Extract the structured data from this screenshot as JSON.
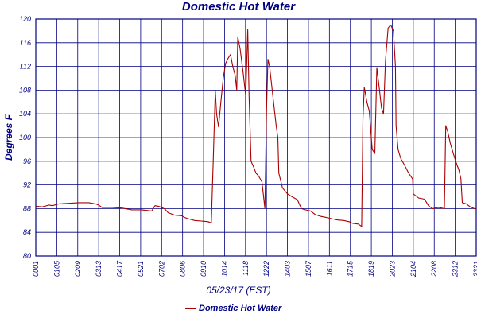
{
  "chart_data": {
    "type": "line",
    "title": "Domestic Hot Water",
    "xlabel": "05/23/17 (EST)",
    "ylabel": "Degrees F",
    "ylim": [
      80,
      120
    ],
    "yticks": [
      "80",
      "84",
      "88",
      "92",
      "96",
      "100",
      "104",
      "108",
      "112",
      "116",
      "120"
    ],
    "xticks": [
      "0001",
      "0105",
      "0209",
      "0313",
      "0417",
      "0521",
      "0702",
      "0806",
      "0910",
      "1014",
      "1118",
      "1222",
      "1403",
      "1507",
      "1611",
      "1715",
      "1819",
      "2023",
      "2104",
      "2208",
      "2312",
      "2321"
    ],
    "grid": true,
    "legend": {
      "position": "bottom",
      "entries": [
        "Domestic Hot Water"
      ]
    },
    "series": [
      {
        "name": "Domestic Hot Water",
        "color": "#aa0000",
        "points": [
          [
            0,
            88.4
          ],
          [
            2,
            88.3
          ],
          [
            4,
            88.6
          ],
          [
            5,
            88.5
          ],
          [
            7,
            88.8
          ],
          [
            10,
            88.9
          ],
          [
            13,
            89.0
          ],
          [
            16,
            89.0
          ],
          [
            18,
            88.8
          ],
          [
            19,
            88.6
          ],
          [
            20,
            88.2
          ],
          [
            23,
            88.2
          ],
          [
            26,
            88.1
          ],
          [
            29,
            87.8
          ],
          [
            32,
            87.8
          ],
          [
            35,
            87.6
          ],
          [
            36,
            88.5
          ],
          [
            37,
            88.4
          ],
          [
            38,
            88.2
          ],
          [
            39,
            87.9
          ],
          [
            40,
            87.3
          ],
          [
            42,
            86.9
          ],
          [
            44,
            86.8
          ],
          [
            45,
            86.5
          ],
          [
            46,
            86.3
          ],
          [
            48,
            86.0
          ],
          [
            50,
            85.9
          ],
          [
            52,
            85.8
          ],
          [
            53,
            85.6
          ],
          [
            53.6,
            96.5
          ],
          [
            54.2,
            108.0
          ],
          [
            54.6,
            104.0
          ],
          [
            55.2,
            101.8
          ],
          [
            55.9,
            106.0
          ],
          [
            56.6,
            110.0
          ],
          [
            57.3,
            112.5
          ],
          [
            58.1,
            113.4
          ],
          [
            58.8,
            114.0
          ],
          [
            59.5,
            112.0
          ],
          [
            60.2,
            110.5
          ],
          [
            60.7,
            108.0
          ],
          [
            61.0,
            117.0
          ],
          [
            61.7,
            115.0
          ],
          [
            62.6,
            111.0
          ],
          [
            63.4,
            107.0
          ],
          [
            64.0,
            118.2
          ],
          [
            64.4,
            107.0
          ],
          [
            65.0,
            96.0
          ],
          [
            65.8,
            95.0
          ],
          [
            66.5,
            94.0
          ],
          [
            67.3,
            93.5
          ],
          [
            68.3,
            92.5
          ],
          [
            69.2,
            88.0
          ],
          [
            69.7,
            105.0
          ],
          [
            70.1,
            113.2
          ],
          [
            70.6,
            112.0
          ],
          [
            71.4,
            108.0
          ],
          [
            72.0,
            105.0
          ],
          [
            72.6,
            102.0
          ],
          [
            73.1,
            100.0
          ],
          [
            73.4,
            94.0
          ],
          [
            74.5,
            91.5
          ],
          [
            76.0,
            90.5
          ],
          [
            77.4,
            90.0
          ],
          [
            79.0,
            89.5
          ],
          [
            80.2,
            88.0
          ],
          [
            81.4,
            87.8
          ],
          [
            83.0,
            87.6
          ],
          [
            84.4,
            87.0
          ],
          [
            86.0,
            86.7
          ],
          [
            87.8,
            86.5
          ],
          [
            89.4,
            86.3
          ],
          [
            91.0,
            86.1
          ],
          [
            93.0,
            86.0
          ],
          [
            94.6,
            85.8
          ],
          [
            95.8,
            85.5
          ],
          [
            97.4,
            85.4
          ],
          [
            98.4,
            85.0
          ],
          [
            98.8,
            103.0
          ],
          [
            99.2,
            108.5
          ],
          [
            100.0,
            106.0
          ],
          [
            100.7,
            104.5
          ],
          [
            101.6,
            98.0
          ],
          [
            102.4,
            97.3
          ],
          [
            103.0,
            111.8
          ],
          [
            103.6,
            109.0
          ],
          [
            104.4,
            105.0
          ],
          [
            105.0,
            104.0
          ],
          [
            105.6,
            113.0
          ],
          [
            106.4,
            118.5
          ],
          [
            107.2,
            119.0
          ],
          [
            108.0,
            118.0
          ],
          [
            108.6,
            112.0
          ],
          [
            108.8,
            102.0
          ],
          [
            109.4,
            98.0
          ],
          [
            110.2,
            96.5
          ],
          [
            111.4,
            95.3
          ],
          [
            112.6,
            94.0
          ],
          [
            113.8,
            93.0
          ],
          [
            114.0,
            90.5
          ],
          [
            115.6,
            89.8
          ],
          [
            117.4,
            89.6
          ],
          [
            118.6,
            88.5
          ],
          [
            119.8,
            88.0
          ],
          [
            121.6,
            88.2
          ],
          [
            123.4,
            88.0
          ],
          [
            123.8,
            102.0
          ],
          [
            124.4,
            101.0
          ],
          [
            125.2,
            99.0
          ],
          [
            126.0,
            97.5
          ],
          [
            126.8,
            96.0
          ],
          [
            127.8,
            94.5
          ],
          [
            128.4,
            93.0
          ],
          [
            128.8,
            89.0
          ],
          [
            130.0,
            88.8
          ],
          [
            131.2,
            88.3
          ],
          [
            132.4,
            88.0
          ],
          [
            133.0,
            88.0
          ]
        ]
      }
    ]
  }
}
